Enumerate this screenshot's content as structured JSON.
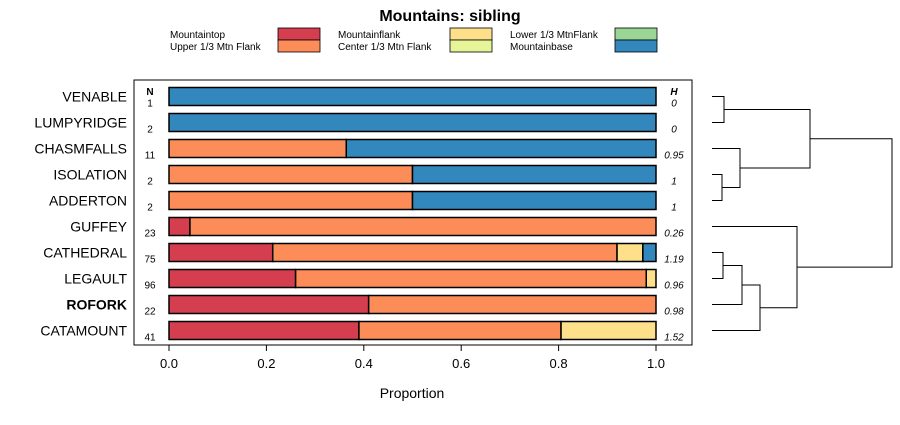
{
  "chart_data": {
    "type": "bar",
    "stacked": true,
    "orientation": "horizontal",
    "title": "Mountains: sibling",
    "xlabel": "Proportion",
    "xlim": [
      0,
      1
    ],
    "xticks": [
      "0.0",
      "0.2",
      "0.4",
      "0.6",
      "0.8",
      "1.0"
    ],
    "n_header": "N",
    "h_header": "H",
    "legend": [
      {
        "name": "Mountaintop",
        "color": "#d53e4f"
      },
      {
        "name": "Upper 1/3 Mtn Flank",
        "color": "#fc8d59"
      },
      {
        "name": "Mountainflank",
        "color": "#fee08b"
      },
      {
        "name": "Center 1/3 Mtn Flank",
        "color": "#e6f598"
      },
      {
        "name": "Lower 1/3 MtnFlank",
        "color": "#99d594"
      },
      {
        "name": "Mountainbase",
        "color": "#3288bd"
      }
    ],
    "categories": [
      "VENABLE",
      "LUMPYRIDGE",
      "CHASMFALLS",
      "ISOLATION",
      "ADDERTON",
      "GUFFEY",
      "CATHEDRAL",
      "LEGAULT",
      "ROFORK",
      "CATAMOUNT"
    ],
    "bold_category": "ROFORK",
    "n": [
      "1",
      "2",
      "11",
      "2",
      "2",
      "23",
      "75",
      "96",
      "22",
      "41"
    ],
    "h": [
      "0",
      "0",
      "0.95",
      "1",
      "1",
      "0.26",
      "1.19",
      "0.96",
      "0.98",
      "1.52"
    ],
    "series": [
      {
        "name": "Mountaintop",
        "values": [
          0,
          0,
          0,
          0,
          0,
          0.043,
          0.213,
          0.26,
          0.41,
          0.39
        ]
      },
      {
        "name": "Upper 1/3 Mtn Flank",
        "values": [
          0,
          0,
          0.364,
          0.5,
          0.5,
          0.957,
          0.707,
          0.72,
          0.59,
          0.415
        ]
      },
      {
        "name": "Mountainflank",
        "values": [
          0,
          0,
          0,
          0,
          0,
          0,
          0.053,
          0.02,
          0,
          0.195
        ]
      },
      {
        "name": "Center 1/3 Mtn Flank",
        "values": [
          0,
          0,
          0,
          0,
          0,
          0,
          0,
          0,
          0,
          0
        ]
      },
      {
        "name": "Lower 1/3 MtnFlank",
        "values": [
          0,
          0,
          0,
          0,
          0,
          0,
          0,
          0,
          0,
          0
        ]
      },
      {
        "name": "Mountainbase",
        "values": [
          1,
          1,
          0.636,
          0.5,
          0.5,
          0,
          0.027,
          0,
          0,
          0
        ]
      }
    ],
    "dendrogram": {
      "merges": [
        {
          "a": "VENABLE",
          "b": "LUMPYRIDGE",
          "height": 0.0
        },
        {
          "a": "ISOLATION",
          "b": "ADDERTON",
          "height": 0.0
        },
        {
          "a": "CHASMFALLS",
          "b": "ISOLATION+ADDERTON",
          "height": 0.12
        },
        {
          "a": "VENABLE+LUMPYRIDGE",
          "b": "CHASMFALLS+ISOLATION+ADDERTON",
          "height": 0.45
        },
        {
          "a": "CATHEDRAL",
          "b": "LEGAULT",
          "height": 0.05
        },
        {
          "a": "CATHEDRAL+LEGAULT",
          "b": "ROFORK",
          "height": 0.15
        },
        {
          "a": "CATHEDRAL+LEGAULT+ROFORK",
          "b": "CATAMOUNT",
          "height": 0.22
        },
        {
          "a": "GUFFEY",
          "b": "CATHEDRAL+LEGAULT+ROFORK+CATAMOUNT",
          "height": 0.41
        },
        {
          "a": "left-cluster",
          "b": "right-cluster",
          "height": 0.8
        }
      ]
    }
  }
}
